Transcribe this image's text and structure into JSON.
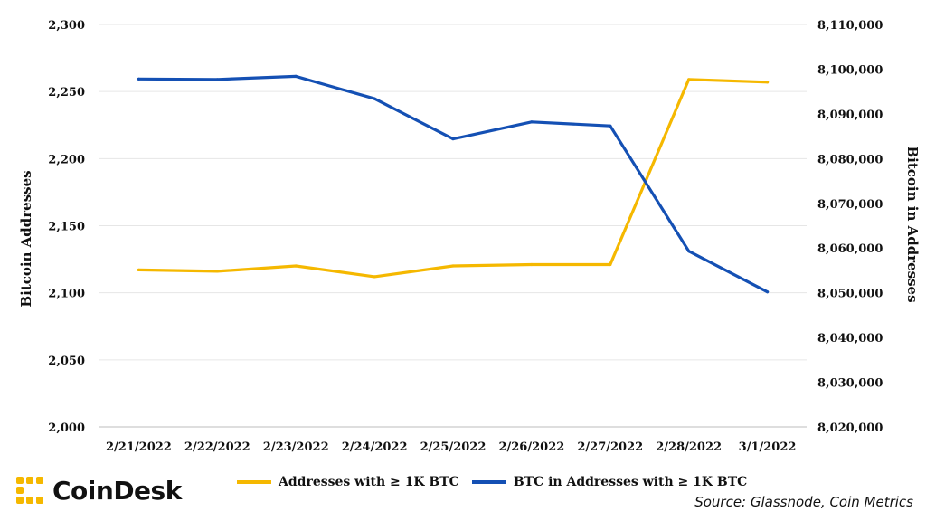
{
  "chart_data": {
    "type": "line",
    "categories": [
      "2/21/2022",
      "2/22/2022",
      "2/23/2022",
      "2/24/2022",
      "2/25/2022",
      "2/26/2022",
      "2/27/2022",
      "2/28/2022",
      "3/1/2022"
    ],
    "series": [
      {
        "name": "Addresses with  ≥ 1K BTC",
        "axis": "left",
        "color": "#F5B800",
        "values": [
          2117,
          2116,
          2120,
          2112,
          2120,
          2121,
          2121,
          2259,
          2257
        ]
      },
      {
        "name": "BTC in Addresses with ≥ 1K BTC",
        "axis": "right",
        "color": "#1450B4",
        "values": [
          8097800,
          8097700,
          8098400,
          8093400,
          8084400,
          8088200,
          8087300,
          8059300,
          8050200
        ]
      }
    ],
    "y_left": {
      "label": "Bitcoin Addresses",
      "range": [
        2000,
        2300
      ],
      "ticks": [
        "2,000",
        "2,050",
        "2,100",
        "2,150",
        "2,200",
        "2,250",
        "2,300"
      ],
      "tick_values": [
        2000,
        2050,
        2100,
        2150,
        2200,
        2250,
        2300
      ]
    },
    "y_right": {
      "label": "Bitcoin in Addresses",
      "range": [
        8020000,
        8110000
      ],
      "ticks": [
        "8,020,000",
        "8,030,000",
        "8,040,000",
        "8,050,000",
        "8,060,000",
        "8,070,000",
        "8,080,000",
        "8,090,000",
        "8,100,000",
        "8,110,000"
      ],
      "tick_values": [
        8020000,
        8030000,
        8040000,
        8050000,
        8060000,
        8070000,
        8080000,
        8090000,
        8100000,
        8110000
      ]
    },
    "grid": true,
    "legend_position": "bottom"
  },
  "legend": {
    "items": [
      {
        "label": "Addresses with  ≥ 1K BTC",
        "color": "#F5B800"
      },
      {
        "label": "BTC in Addresses with ≥ 1K BTC",
        "color": "#1450B4"
      }
    ]
  },
  "brand": {
    "name": "CoinDesk",
    "icon": "coindesk-logo-icon",
    "color": "#F5B800"
  },
  "source": "Source: Glassnode, Coin Metrics"
}
